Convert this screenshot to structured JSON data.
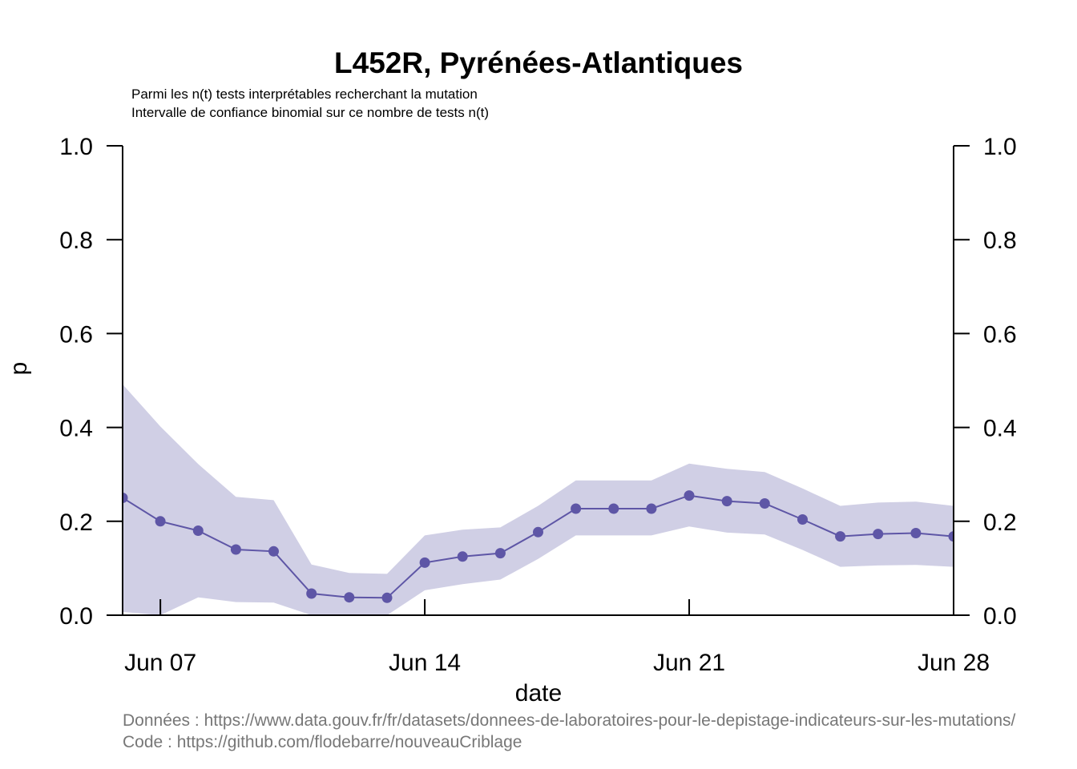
{
  "chart_data": {
    "type": "line",
    "title": "L452R, Pyrénées-Atlantiques",
    "subtitle": [
      "Parmi les n(t) tests interprétables recherchant la mutation",
      "Intervalle de confiance binomial sur ce nombre de tests n(t)"
    ],
    "xlabel": "date",
    "ylabel": "p",
    "ylim": [
      0,
      1
    ],
    "yticks": [
      "0.0",
      "0.2",
      "0.4",
      "0.6",
      "0.8",
      "1.0"
    ],
    "xticks": [
      "Jun 07",
      "Jun 14",
      "Jun 21",
      "Jun 28"
    ],
    "x": [
      "2021-06-06",
      "2021-06-07",
      "2021-06-08",
      "2021-06-09",
      "2021-06-10",
      "2021-06-11",
      "2021-06-12",
      "2021-06-13",
      "2021-06-14",
      "2021-06-15",
      "2021-06-16",
      "2021-06-17",
      "2021-06-18",
      "2021-06-19",
      "2021-06-20",
      "2021-06-21",
      "2021-06-22",
      "2021-06-23",
      "2021-06-24",
      "2021-06-25",
      "2021-06-26",
      "2021-06-27",
      "2021-06-28"
    ],
    "series": [
      {
        "values": [
          0.25,
          0.2,
          0.18,
          0.14,
          0.136,
          0.046,
          0.038,
          0.037,
          0.112,
          0.125,
          0.132,
          0.177,
          0.227,
          0.227,
          0.227,
          0.255,
          0.243,
          0.238,
          0.204,
          0.168,
          0.173,
          0.175,
          0.168
        ],
        "lower": [
          0.007,
          0.0,
          0.038,
          0.028,
          0.027,
          0.0,
          0.0,
          0.0,
          0.053,
          0.066,
          0.076,
          0.12,
          0.17,
          0.17,
          0.17,
          0.189,
          0.176,
          0.172,
          0.139,
          0.103,
          0.106,
          0.107,
          0.103
        ],
        "upper": [
          0.492,
          0.402,
          0.322,
          0.252,
          0.245,
          0.108,
          0.09,
          0.088,
          0.17,
          0.182,
          0.187,
          0.233,
          0.287,
          0.287,
          0.287,
          0.323,
          0.312,
          0.305,
          0.27,
          0.233,
          0.24,
          0.242,
          0.233
        ]
      }
    ],
    "colors": {
      "line": "#5e56a6",
      "band": "#d0cfe5"
    },
    "grid": false,
    "legend": "none"
  },
  "footer": {
    "data_source": "Données : https://www.data.gouv.fr/fr/datasets/donnees-de-laboratoires-pour-le-depistage-indicateurs-sur-les-mutations/",
    "code_source": "Code : https://github.com/flodebarre/nouveauCriblage"
  }
}
